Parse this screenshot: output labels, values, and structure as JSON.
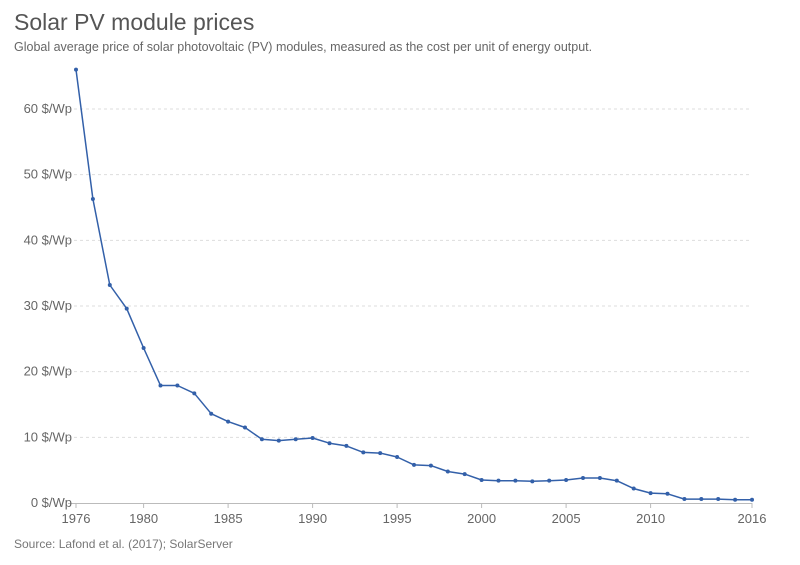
{
  "header": {
    "title": "Solar PV module prices",
    "subtitle": "Global average price of solar photovoltaic (PV) modules, measured as the cost per unit of energy output."
  },
  "footer": {
    "source": "Source: Lafond et al. (2017); SolarServer"
  },
  "colors": {
    "line": "#3360a9",
    "grid": "#dddddd",
    "axis": "#bbbbbb"
  },
  "chart_data": {
    "type": "line",
    "title": "Solar PV module prices",
    "xlabel": "",
    "ylabel": "",
    "xlim": [
      1976,
      2016
    ],
    "ylim": [
      0,
      65
    ],
    "grid": true,
    "y_ticks": [
      0,
      10,
      20,
      30,
      40,
      50,
      60
    ],
    "y_tick_labels": [
      "0 $/Wp",
      "10 $/Wp",
      "20 $/Wp",
      "30 $/Wp",
      "40 $/Wp",
      "50 $/Wp",
      "60 $/Wp"
    ],
    "x_ticks": [
      1976,
      1980,
      1985,
      1990,
      1995,
      2000,
      2005,
      2010,
      2016
    ],
    "x_tick_labels": [
      "1976",
      "1980",
      "1985",
      "1990",
      "1995",
      "2000",
      "2005",
      "2010",
      "2016"
    ],
    "series": [
      {
        "x": [
          1976,
          1977,
          1978,
          1979,
          1980,
          1981,
          1982,
          1983,
          1984,
          1985,
          1986,
          1987,
          1988,
          1989,
          1990,
          1991,
          1992,
          1993,
          1994,
          1995,
          1996,
          1997,
          1998,
          1999,
          2000,
          2001,
          2002,
          2003,
          2004,
          2005,
          2006,
          2007,
          2008,
          2009,
          2010,
          2011,
          2012,
          2013,
          2014,
          2015,
          2016
        ],
        "y": [
          66.0,
          46.3,
          33.2,
          29.6,
          23.6,
          17.9,
          17.9,
          16.7,
          13.6,
          12.4,
          11.5,
          9.7,
          9.5,
          9.7,
          9.9,
          9.1,
          8.7,
          7.7,
          7.6,
          7.0,
          5.8,
          5.7,
          4.8,
          4.4,
          3.5,
          3.4,
          3.4,
          3.3,
          3.4,
          3.5,
          3.8,
          3.8,
          3.4,
          2.2,
          1.5,
          1.4,
          0.6,
          0.6,
          0.6,
          0.5,
          0.5
        ]
      }
    ]
  }
}
